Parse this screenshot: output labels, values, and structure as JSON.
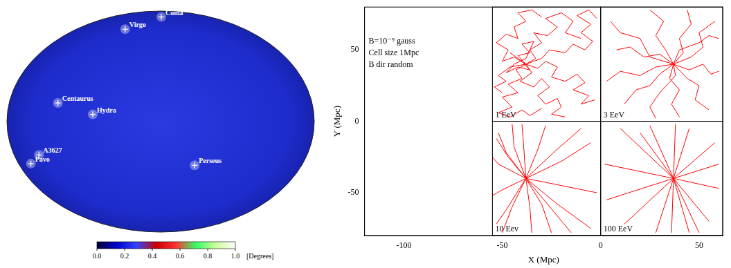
{
  "sky_map": {
    "sources": [
      {
        "name": "Coma",
        "lon": 5,
        "lat": 84
      },
      {
        "name": "Virgo",
        "lon": -92,
        "lat": 69
      },
      {
        "name": "Centaurus",
        "lon": -115,
        "lat": 12
      },
      {
        "name": "Hydra",
        "lon": -73,
        "lat": 5
      },
      {
        "name": "A3627",
        "lon": -145,
        "lat": -20
      },
      {
        "name": "Pavo",
        "lon": -162,
        "lat": -24
      },
      {
        "name": "Perseus",
        "lon": 41,
        "lat": -32
      }
    ],
    "colorbar": {
      "label": "[Degrees]",
      "range": [
        0,
        1
      ],
      "ticks": [
        {
          "value": 0,
          "label": "0.0"
        },
        {
          "value": 0.2,
          "label": "0.2"
        },
        {
          "value": 0.4,
          "label": "0.4"
        },
        {
          "value": 0.6,
          "label": "0.6"
        },
        {
          "value": 0.8,
          "label": "0.8"
        },
        {
          "value": 1,
          "label": "1.0"
        }
      ],
      "colors": [
        "#000033",
        "#0000cc",
        "#3344ff",
        "#cc0000",
        "#ff3333",
        "#33ff66",
        "#ccff99",
        "#ffffff"
      ]
    }
  },
  "chart_data": {
    "type": "line",
    "x_label": "X (Mpc)",
    "y_label": "Y (Mpc)",
    "xlim": [
      -120,
      62
    ],
    "ylim": [
      -80,
      80
    ],
    "xticks": [
      -100,
      -50,
      0,
      50
    ],
    "yticks": [
      -50,
      0,
      50
    ],
    "grid": false,
    "color": "#ff0000",
    "annotations": [
      "B=10⁻⁹ gauss",
      "Cell size 1Mpc",
      "B dir random"
    ],
    "panels": [
      {
        "label": "1 EeV",
        "xlim": [
          -55,
          0
        ],
        "ylim": [
          0,
          80
        ],
        "tracks": [
          [
            [
              -38,
              40
            ],
            [
              -33,
              44
            ],
            [
              -36,
              50
            ],
            [
              -30,
              55
            ],
            [
              -34,
              62
            ],
            [
              -27,
              60
            ],
            [
              -22,
              66
            ],
            [
              -28,
              72
            ],
            [
              -20,
              76
            ],
            [
              -14,
              70
            ],
            [
              -18,
              62
            ],
            [
              -10,
              58
            ]
          ],
          [
            [
              -38,
              40
            ],
            [
              -43,
              36
            ],
            [
              -40,
              30
            ],
            [
              -47,
              26
            ],
            [
              -42,
              20
            ],
            [
              -50,
              17
            ],
            [
              -45,
              10
            ],
            [
              -52,
              6
            ],
            [
              -46,
              3
            ],
            [
              -40,
              8
            ],
            [
              -36,
              4
            ],
            [
              -30,
              9
            ]
          ],
          [
            [
              -38,
              40
            ],
            [
              -32,
              37
            ],
            [
              -28,
              42
            ],
            [
              -22,
              38
            ],
            [
              -25,
              31
            ],
            [
              -18,
              28
            ],
            [
              -12,
              33
            ],
            [
              -8,
              27
            ],
            [
              -14,
              22
            ],
            [
              -6,
              18
            ],
            [
              -10,
              12
            ],
            [
              -3,
              15
            ]
          ],
          [
            [
              -38,
              40
            ],
            [
              -44,
              45
            ],
            [
              -50,
              42
            ],
            [
              -47,
              50
            ],
            [
              -53,
              55
            ],
            [
              -48,
              61
            ],
            [
              -42,
              58
            ],
            [
              -44,
              66
            ],
            [
              -38,
              70
            ],
            [
              -42,
              76
            ],
            [
              -35,
              78
            ],
            [
              -30,
              73
            ]
          ],
          [
            [
              -38,
              40
            ],
            [
              -35,
              34
            ],
            [
              -41,
              28
            ],
            [
              -34,
              24
            ],
            [
              -30,
              30
            ],
            [
              -26,
              24
            ],
            [
              -32,
              18
            ],
            [
              -28,
              12
            ],
            [
              -22,
              16
            ],
            [
              -20,
              10
            ],
            [
              -25,
              5
            ],
            [
              -18,
              3
            ]
          ],
          [
            [
              -38,
              40
            ],
            [
              -42,
              46
            ],
            [
              -36,
              48
            ],
            [
              -40,
              54
            ],
            [
              -34,
              56
            ],
            [
              -38,
              44
            ],
            [
              -44,
              40
            ],
            [
              -48,
              34
            ],
            [
              -42,
              38
            ],
            [
              -36,
              36
            ],
            [
              -40,
              42
            ],
            [
              -46,
              48
            ]
          ],
          [
            [
              -38,
              40
            ],
            [
              -30,
              44
            ],
            [
              -26,
              50
            ],
            [
              -18,
              48
            ],
            [
              -14,
              54
            ],
            [
              -8,
              50
            ],
            [
              -4,
              56
            ],
            [
              -10,
              62
            ],
            [
              -5,
              68
            ],
            [
              -12,
              74
            ],
            [
              -6,
              78
            ],
            [
              -2,
              72
            ]
          ],
          [
            [
              -38,
              40
            ],
            [
              -46,
              38
            ],
            [
              -52,
              32
            ],
            [
              -48,
              28
            ],
            [
              -54,
              24
            ],
            [
              -50,
              20
            ]
          ]
        ]
      },
      {
        "label": "3 EeV",
        "xlim": [
          0,
          62
        ],
        "ylim": [
          0,
          80
        ],
        "tracks": [
          [
            [
              37,
              40
            ],
            [
              42,
              48
            ],
            [
              40,
              58
            ],
            [
              46,
              68
            ],
            [
              44,
              78
            ]
          ],
          [
            [
              37,
              40
            ],
            [
              30,
              47
            ],
            [
              22,
              45
            ],
            [
              15,
              52
            ],
            [
              8,
              50
            ]
          ],
          [
            [
              37,
              40
            ],
            [
              45,
              36
            ],
            [
              52,
              40
            ],
            [
              56,
              33
            ],
            [
              60,
              35
            ]
          ],
          [
            [
              37,
              40
            ],
            [
              35,
              30
            ],
            [
              40,
              22
            ],
            [
              36,
              12
            ],
            [
              40,
              3
            ]
          ],
          [
            [
              37,
              40
            ],
            [
              30,
              33
            ],
            [
              25,
              25
            ],
            [
              18,
              22
            ],
            [
              12,
              12
            ]
          ],
          [
            [
              37,
              40
            ],
            [
              44,
              30
            ],
            [
              50,
              25
            ],
            [
              48,
              15
            ],
            [
              55,
              8
            ]
          ],
          [
            [
              37,
              40
            ],
            [
              33,
              50
            ],
            [
              28,
              60
            ],
            [
              32,
              70
            ],
            [
              25,
              78
            ]
          ],
          [
            [
              37,
              40
            ],
            [
              46,
              45
            ],
            [
              52,
              52
            ],
            [
              50,
              62
            ],
            [
              58,
              70
            ]
          ],
          [
            [
              37,
              40
            ],
            [
              28,
              38
            ],
            [
              20,
              32
            ],
            [
              10,
              35
            ],
            [
              3,
              28
            ]
          ],
          [
            [
              37,
              40
            ],
            [
              40,
              50
            ],
            [
              50,
              55
            ],
            [
              55,
              60
            ],
            [
              60,
              58
            ]
          ],
          [
            [
              37,
              40
            ],
            [
              38,
              32
            ],
            [
              30,
              20
            ],
            [
              25,
              10
            ],
            [
              28,
              2
            ]
          ],
          [
            [
              37,
              40
            ],
            [
              25,
              45
            ],
            [
              20,
              58
            ],
            [
              10,
              62
            ],
            [
              5,
              70
            ]
          ]
        ]
      },
      {
        "label": "10 Eev",
        "xlim": [
          -55,
          0
        ],
        "ylim": [
          -80,
          0
        ],
        "tracks": [
          [
            [
              -53,
              -12
            ],
            [
              -47,
              -25
            ],
            [
              -38,
              -40
            ],
            [
              -30,
              -58
            ],
            [
              -25,
              -78
            ]
          ],
          [
            [
              -28,
              -3
            ],
            [
              -32,
              -20
            ],
            [
              -38,
              -40
            ],
            [
              -45,
              -60
            ],
            [
              -50,
              -78
            ]
          ],
          [
            [
              -5,
              -15
            ],
            [
              -20,
              -28
            ],
            [
              -38,
              -40
            ],
            [
              -50,
              -48
            ],
            [
              -55,
              -52
            ]
          ],
          [
            [
              -10,
              -5
            ],
            [
              -24,
              -22
            ],
            [
              -38,
              -40
            ],
            [
              -48,
              -62
            ],
            [
              -53,
              -72
            ]
          ],
          [
            [
              -40,
              -2
            ],
            [
              -39,
              -20
            ],
            [
              -38,
              -40
            ],
            [
              -36,
              -60
            ],
            [
              -35,
              -78
            ]
          ],
          [
            [
              -2,
              -50
            ],
            [
              -20,
              -45
            ],
            [
              -38,
              -40
            ],
            [
              -52,
              -30
            ],
            [
              -55,
              -25
            ]
          ],
          [
            [
              -5,
              -75
            ],
            [
              -22,
              -58
            ],
            [
              -38,
              -40
            ],
            [
              -48,
              -22
            ],
            [
              -52,
              -8
            ]
          ],
          [
            [
              -15,
              -78
            ],
            [
              -27,
              -58
            ],
            [
              -38,
              -40
            ],
            [
              -44,
              -18
            ],
            [
              -45,
              -2
            ]
          ]
        ]
      },
      {
        "label": "100 EeV",
        "xlim": [
          0,
          62
        ],
        "ylim": [
          -80,
          0
        ],
        "tracks": [
          [
            [
              2,
              -30
            ],
            [
              37,
              -40
            ],
            [
              60,
              -47
            ]
          ],
          [
            [
              10,
              -5
            ],
            [
              37,
              -40
            ],
            [
              55,
              -70
            ]
          ],
          [
            [
              25,
              -3
            ],
            [
              37,
              -40
            ],
            [
              45,
              -78
            ]
          ],
          [
            [
              45,
              -5
            ],
            [
              37,
              -40
            ],
            [
              28,
              -78
            ]
          ],
          [
            [
              58,
              -15
            ],
            [
              37,
              -40
            ],
            [
              12,
              -72
            ]
          ],
          [
            [
              60,
              -30
            ],
            [
              37,
              -40
            ],
            [
              3,
              -55
            ]
          ],
          [
            [
              20,
              -8
            ],
            [
              37,
              -40
            ],
            [
              50,
              -78
            ]
          ],
          [
            [
              38,
              -2
            ],
            [
              37,
              -40
            ],
            [
              36,
              -78
            ]
          ]
        ]
      }
    ]
  }
}
